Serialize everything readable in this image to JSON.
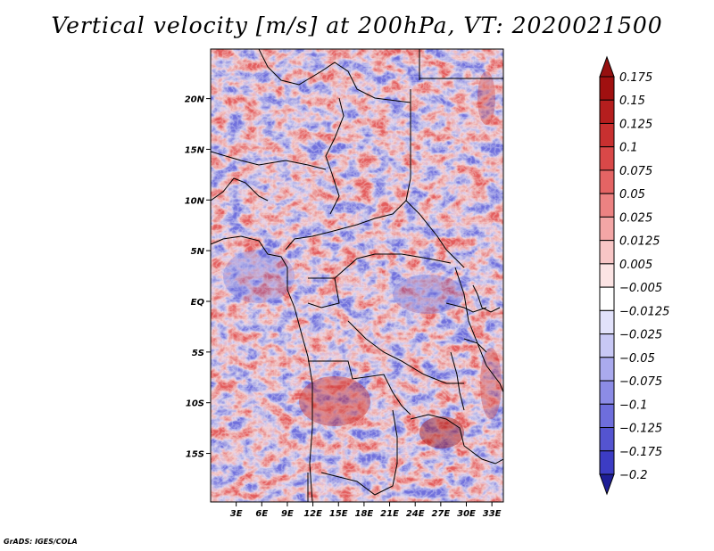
{
  "title": "Vertical velocity [m/s] at 200hPa, VT: 2020021500",
  "credit": "GrADS: IGES/COLA",
  "map": {
    "lon_range": [
      0,
      35
    ],
    "lat_range": [
      -20,
      24
    ],
    "lat_ticks": [
      {
        "lat": 20,
        "label": "20N"
      },
      {
        "lat": 15,
        "label": "15N"
      },
      {
        "lat": 10,
        "label": "10N"
      },
      {
        "lat": 5,
        "label": "5N"
      },
      {
        "lat": 0,
        "label": "EQ"
      },
      {
        "lat": -5,
        "label": "5S"
      },
      {
        "lat": -10,
        "label": "10S"
      },
      {
        "lat": -15,
        "label": "15S"
      }
    ],
    "lon_ticks": [
      {
        "lon": 3,
        "label": "3E"
      },
      {
        "lon": 6,
        "label": "6E"
      },
      {
        "lon": 9,
        "label": "9E"
      },
      {
        "lon": 12,
        "label": "12E"
      },
      {
        "lon": 15,
        "label": "15E"
      },
      {
        "lon": 18,
        "label": "18E"
      },
      {
        "lon": 21,
        "label": "21E"
      },
      {
        "lon": 24,
        "label": "24E"
      },
      {
        "lon": 27,
        "label": "27E"
      },
      {
        "lon": 30,
        "label": "30E"
      },
      {
        "lon": 33,
        "label": "33E"
      }
    ]
  },
  "colorbar": {
    "levels": [
      {
        "label": "0.175",
        "color": "#a01010"
      },
      {
        "label": "0.15",
        "color": "#b51e1e"
      },
      {
        "label": "0.125",
        "color": "#c83030"
      },
      {
        "label": "0.1",
        "color": "#d94848"
      },
      {
        "label": "0.075",
        "color": "#e46464"
      },
      {
        "label": "0.05",
        "color": "#ec8282"
      },
      {
        "label": "0.025",
        "color": "#f3a6a6"
      },
      {
        "label": "0.0125",
        "color": "#f8c6c6"
      },
      {
        "label": "0.005",
        "color": "#fce4e4"
      },
      {
        "label": "−0.005",
        "color": "#ffffff"
      },
      {
        "label": "−0.0125",
        "color": "#e2e2fb"
      },
      {
        "label": "−0.025",
        "color": "#c8c8f5"
      },
      {
        "label": "−0.05",
        "color": "#aaaaee"
      },
      {
        "label": "−0.075",
        "color": "#8c8ce6"
      },
      {
        "label": "−0.1",
        "color": "#6e6edc"
      },
      {
        "label": "−0.125",
        "color": "#5454d0"
      },
      {
        "label": "−0.175",
        "color": "#3c3cc4"
      },
      {
        "label": "−0.2",
        "color": "#2a2ab4"
      }
    ],
    "top_color": "#961010",
    "bottom_color": "#1e1e96"
  }
}
